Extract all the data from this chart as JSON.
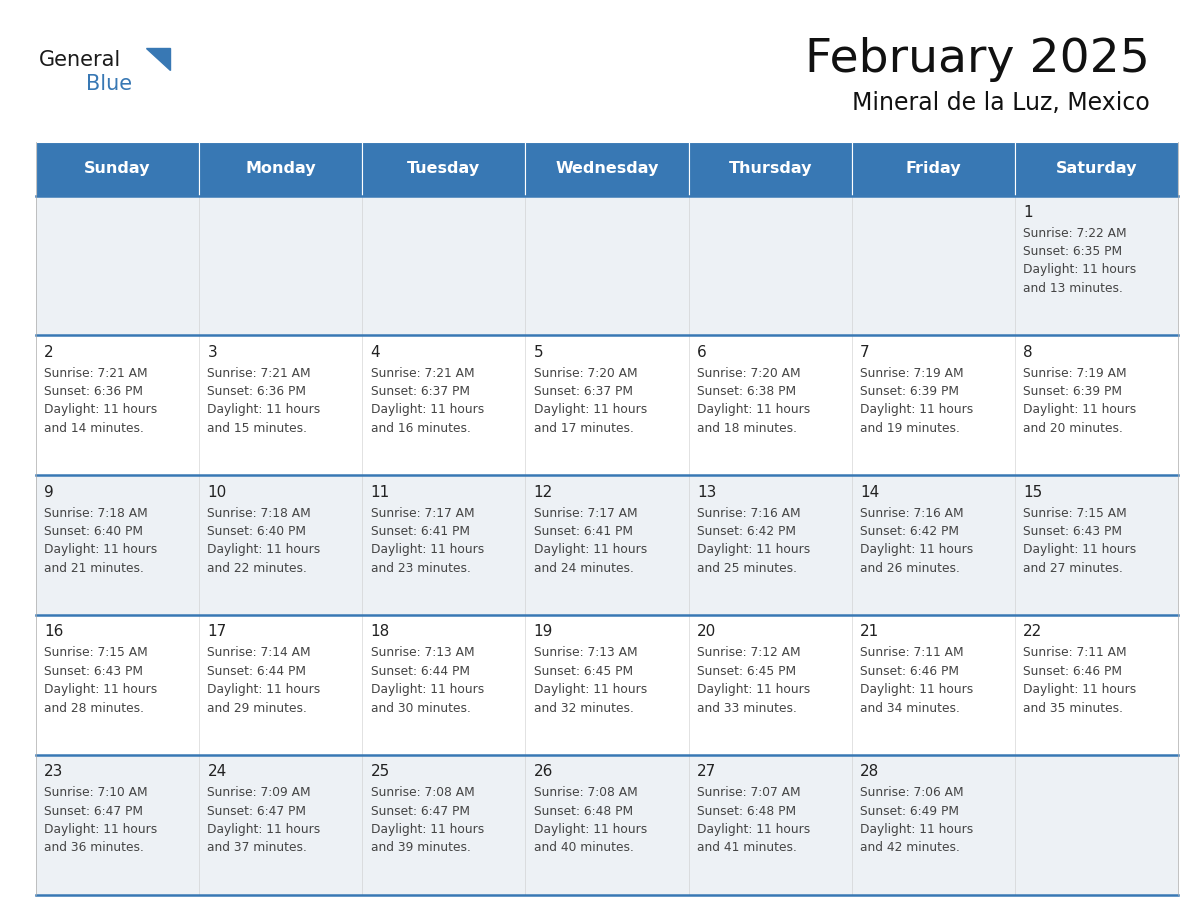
{
  "title": "February 2025",
  "subtitle": "Mineral de la Luz, Mexico",
  "days_of_week": [
    "Sunday",
    "Monday",
    "Tuesday",
    "Wednesday",
    "Thursday",
    "Friday",
    "Saturday"
  ],
  "header_bg": "#3878b4",
  "header_text": "#ffffff",
  "cell_bg_odd": "#edf1f5",
  "cell_bg_even": "#ffffff",
  "row_line_color": "#3878b4",
  "text_color": "#444444",
  "day_number_color": "#222222",
  "calendar_data": [
    [
      null,
      null,
      null,
      null,
      null,
      null,
      {
        "day": 1,
        "sunrise": "7:22 AM",
        "sunset": "6:35 PM",
        "daylight": "11 hours\nand 13 minutes."
      }
    ],
    [
      {
        "day": 2,
        "sunrise": "7:21 AM",
        "sunset": "6:36 PM",
        "daylight": "11 hours\nand 14 minutes."
      },
      {
        "day": 3,
        "sunrise": "7:21 AM",
        "sunset": "6:36 PM",
        "daylight": "11 hours\nand 15 minutes."
      },
      {
        "day": 4,
        "sunrise": "7:21 AM",
        "sunset": "6:37 PM",
        "daylight": "11 hours\nand 16 minutes."
      },
      {
        "day": 5,
        "sunrise": "7:20 AM",
        "sunset": "6:37 PM",
        "daylight": "11 hours\nand 17 minutes."
      },
      {
        "day": 6,
        "sunrise": "7:20 AM",
        "sunset": "6:38 PM",
        "daylight": "11 hours\nand 18 minutes."
      },
      {
        "day": 7,
        "sunrise": "7:19 AM",
        "sunset": "6:39 PM",
        "daylight": "11 hours\nand 19 minutes."
      },
      {
        "day": 8,
        "sunrise": "7:19 AM",
        "sunset": "6:39 PM",
        "daylight": "11 hours\nand 20 minutes."
      }
    ],
    [
      {
        "day": 9,
        "sunrise": "7:18 AM",
        "sunset": "6:40 PM",
        "daylight": "11 hours\nand 21 minutes."
      },
      {
        "day": 10,
        "sunrise": "7:18 AM",
        "sunset": "6:40 PM",
        "daylight": "11 hours\nand 22 minutes."
      },
      {
        "day": 11,
        "sunrise": "7:17 AM",
        "sunset": "6:41 PM",
        "daylight": "11 hours\nand 23 minutes."
      },
      {
        "day": 12,
        "sunrise": "7:17 AM",
        "sunset": "6:41 PM",
        "daylight": "11 hours\nand 24 minutes."
      },
      {
        "day": 13,
        "sunrise": "7:16 AM",
        "sunset": "6:42 PM",
        "daylight": "11 hours\nand 25 minutes."
      },
      {
        "day": 14,
        "sunrise": "7:16 AM",
        "sunset": "6:42 PM",
        "daylight": "11 hours\nand 26 minutes."
      },
      {
        "day": 15,
        "sunrise": "7:15 AM",
        "sunset": "6:43 PM",
        "daylight": "11 hours\nand 27 minutes."
      }
    ],
    [
      {
        "day": 16,
        "sunrise": "7:15 AM",
        "sunset": "6:43 PM",
        "daylight": "11 hours\nand 28 minutes."
      },
      {
        "day": 17,
        "sunrise": "7:14 AM",
        "sunset": "6:44 PM",
        "daylight": "11 hours\nand 29 minutes."
      },
      {
        "day": 18,
        "sunrise": "7:13 AM",
        "sunset": "6:44 PM",
        "daylight": "11 hours\nand 30 minutes."
      },
      {
        "day": 19,
        "sunrise": "7:13 AM",
        "sunset": "6:45 PM",
        "daylight": "11 hours\nand 32 minutes."
      },
      {
        "day": 20,
        "sunrise": "7:12 AM",
        "sunset": "6:45 PM",
        "daylight": "11 hours\nand 33 minutes."
      },
      {
        "day": 21,
        "sunrise": "7:11 AM",
        "sunset": "6:46 PM",
        "daylight": "11 hours\nand 34 minutes."
      },
      {
        "day": 22,
        "sunrise": "7:11 AM",
        "sunset": "6:46 PM",
        "daylight": "11 hours\nand 35 minutes."
      }
    ],
    [
      {
        "day": 23,
        "sunrise": "7:10 AM",
        "sunset": "6:47 PM",
        "daylight": "11 hours\nand 36 minutes."
      },
      {
        "day": 24,
        "sunrise": "7:09 AM",
        "sunset": "6:47 PM",
        "daylight": "11 hours\nand 37 minutes."
      },
      {
        "day": 25,
        "sunrise": "7:08 AM",
        "sunset": "6:47 PM",
        "daylight": "11 hours\nand 39 minutes."
      },
      {
        "day": 26,
        "sunrise": "7:08 AM",
        "sunset": "6:48 PM",
        "daylight": "11 hours\nand 40 minutes."
      },
      {
        "day": 27,
        "sunrise": "7:07 AM",
        "sunset": "6:48 PM",
        "daylight": "11 hours\nand 41 minutes."
      },
      {
        "day": 28,
        "sunrise": "7:06 AM",
        "sunset": "6:49 PM",
        "daylight": "11 hours\nand 42 minutes."
      },
      null
    ]
  ],
  "fig_width": 11.88,
  "fig_height": 9.18,
  "dpi": 100
}
